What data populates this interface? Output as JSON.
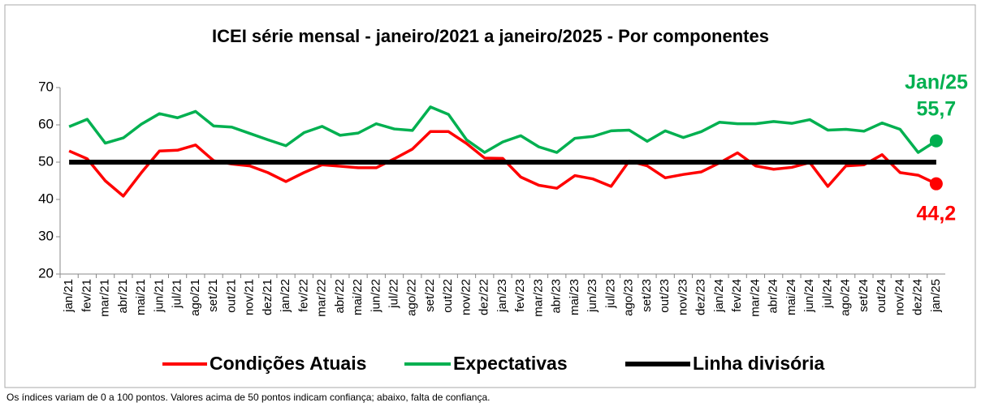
{
  "chart_data": {
    "type": "line",
    "title": "ICEI série mensal - janeiro/2021 a janeiro/2025 - Por componentes",
    "categories": [
      "jan/21",
      "fev/21",
      "mar/21",
      "abr/21",
      "mai/21",
      "jun/21",
      "jul/21",
      "ago/21",
      "set/21",
      "out/21",
      "nov/21",
      "dez/21",
      "jan/22",
      "fev/22",
      "mar/22",
      "abr/22",
      "mai/22",
      "jun/22",
      "jul/22",
      "ago/22",
      "set/22",
      "out/22",
      "nov/22",
      "dez/22",
      "jan/23",
      "fev/23",
      "mar/23",
      "abr/23",
      "mai/23",
      "jun/23",
      "jul/23",
      "ago/23",
      "set/23",
      "out/23",
      "nov/23",
      "dez/23",
      "jan/24",
      "fev/24",
      "mar/24",
      "abr/24",
      "mai/24",
      "jun/24",
      "jul/24",
      "ago/24",
      "set/24",
      "out/24",
      "nov/24",
      "dez/24",
      "jan/25"
    ],
    "series": [
      {
        "name": "Condições Atuais",
        "color": "#ff0000",
        "values": [
          53.0,
          50.9,
          45.0,
          40.9,
          47.2,
          53.0,
          53.2,
          54.6,
          50.4,
          49.5,
          49.0,
          47.2,
          44.8,
          47.2,
          49.3,
          48.9,
          48.5,
          48.5,
          50.9,
          53.5,
          58.2,
          58.2,
          55.0,
          51.1,
          51.0,
          46.0,
          43.8,
          43.0,
          46.4,
          45.5,
          43.5,
          50.3,
          49.0,
          45.8,
          46.7,
          47.4,
          49.8,
          52.5,
          49.0,
          48.1,
          48.6,
          49.9,
          43.5,
          49.0,
          49.3,
          52.0,
          47.2,
          46.5,
          44.2
        ],
        "value_labels": [
          null,
          null,
          null,
          null,
          null,
          null,
          null,
          null,
          null,
          null,
          null,
          null,
          null,
          null,
          null,
          null,
          null,
          null,
          null,
          null,
          null,
          null,
          null,
          null,
          null,
          null,
          null,
          null,
          null,
          null,
          null,
          null,
          null,
          null,
          null,
          null,
          null,
          null,
          null,
          null,
          null,
          null,
          null,
          null,
          null,
          null,
          null,
          null,
          "44,2"
        ]
      },
      {
        "name": "Expectativas",
        "color": "#00b050",
        "values": [
          59.5,
          61.5,
          55.1,
          56.5,
          60.2,
          63.0,
          61.9,
          63.6,
          59.7,
          59.4,
          57.7,
          56.0,
          54.4,
          57.9,
          59.6,
          57.2,
          57.8,
          60.3,
          58.9,
          58.5,
          64.8,
          62.8,
          56.0,
          52.6,
          55.4,
          57.1,
          54.1,
          52.6,
          56.4,
          56.9,
          58.4,
          58.6,
          55.6,
          58.4,
          56.6,
          58.2,
          60.7,
          60.3,
          60.3,
          60.9,
          60.4,
          61.4,
          58.6,
          58.8,
          58.3,
          60.5,
          58.8,
          52.6,
          55.7
        ],
        "value_labels": [
          null,
          null,
          null,
          null,
          null,
          null,
          null,
          null,
          null,
          null,
          null,
          null,
          null,
          null,
          null,
          null,
          null,
          null,
          null,
          null,
          null,
          null,
          null,
          null,
          null,
          null,
          null,
          null,
          null,
          null,
          null,
          null,
          null,
          null,
          null,
          null,
          null,
          null,
          null,
          null,
          null,
          null,
          null,
          null,
          null,
          null,
          null,
          null,
          "55,7"
        ]
      },
      {
        "name": "Linha divisória",
        "color": "#000000",
        "values": [
          50,
          50,
          50,
          50,
          50,
          50,
          50,
          50,
          50,
          50,
          50,
          50,
          50,
          50,
          50,
          50,
          50,
          50,
          50,
          50,
          50,
          50,
          50,
          50,
          50,
          50,
          50,
          50,
          50,
          50,
          50,
          50,
          50,
          50,
          50,
          50,
          50,
          50,
          50,
          50,
          50,
          50,
          50,
          50,
          50,
          50,
          50,
          50,
          50
        ]
      }
    ],
    "annotation": "Jan/25",
    "ylim": [
      20,
      70
    ],
    "yticks": [
      20,
      30,
      40,
      50,
      60,
      70
    ],
    "grid": false,
    "legend": "bottom",
    "footnote": "Os índices variam de 0 a 100 pontos. Valores acima de 50 pontos indicam confiança; abaixo, falta de confiança."
  }
}
